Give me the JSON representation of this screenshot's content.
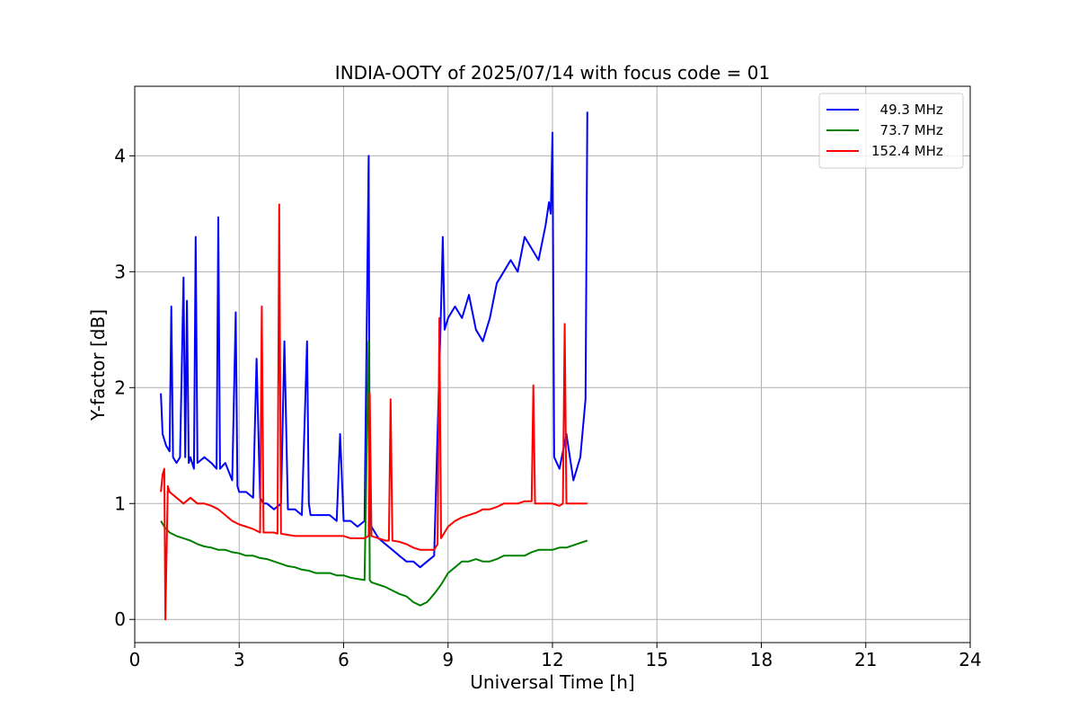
{
  "chart_data": {
    "type": "line",
    "title": "INDIA-OOTY of 2025/07/14 with focus code = 01",
    "xlabel": "Universal Time [h]",
    "ylabel": "Y-factor [dB]",
    "xlim": [
      0,
      24
    ],
    "ylim": [
      -0.2,
      4.6
    ],
    "xticks": [
      0,
      3,
      6,
      9,
      12,
      15,
      18,
      21,
      24
    ],
    "yticks": [
      0,
      1,
      2,
      3,
      4
    ],
    "grid": true,
    "legend_position": "top-right",
    "series": [
      {
        "name": "  49.3 MHz",
        "color": "#0000ff",
        "x": [
          0.75,
          0.8,
          0.9,
          1.0,
          1.05,
          1.1,
          1.2,
          1.3,
          1.4,
          1.45,
          1.5,
          1.55,
          1.6,
          1.7,
          1.75,
          1.8,
          2.0,
          2.2,
          2.35,
          2.4,
          2.45,
          2.6,
          2.8,
          2.9,
          2.95,
          3.0,
          3.2,
          3.4,
          3.5,
          3.6,
          3.7,
          3.8,
          4.0,
          4.2,
          4.3,
          4.4,
          4.6,
          4.8,
          4.95,
          5.0,
          5.05,
          5.2,
          5.4,
          5.6,
          5.8,
          5.9,
          6.0,
          6.2,
          6.4,
          6.6,
          6.72,
          6.75,
          6.8,
          7.0,
          7.2,
          7.4,
          7.6,
          7.8,
          8.0,
          8.2,
          8.4,
          8.6,
          8.8,
          8.85,
          8.9,
          9.0,
          9.2,
          9.4,
          9.6,
          9.8,
          10.0,
          10.2,
          10.4,
          10.6,
          10.8,
          11.0,
          11.2,
          11.4,
          11.6,
          11.8,
          11.9,
          11.95,
          12.0,
          12.05,
          12.2,
          12.4,
          12.6,
          12.8,
          12.95,
          13.0
        ],
        "y": [
          1.95,
          1.6,
          1.5,
          1.45,
          2.7,
          1.4,
          1.35,
          1.4,
          2.95,
          1.4,
          2.75,
          1.35,
          1.4,
          1.3,
          3.3,
          1.35,
          1.4,
          1.35,
          1.3,
          3.47,
          1.3,
          1.35,
          1.2,
          2.65,
          1.15,
          1.1,
          1.1,
          1.05,
          2.25,
          1.05,
          1.0,
          1.0,
          0.95,
          1.0,
          2.4,
          0.95,
          0.95,
          0.9,
          2.4,
          1.0,
          0.9,
          0.9,
          0.9,
          0.9,
          0.85,
          1.6,
          0.85,
          0.85,
          0.8,
          0.85,
          4.0,
          0.9,
          0.8,
          0.7,
          0.65,
          0.6,
          0.55,
          0.5,
          0.5,
          0.45,
          0.5,
          0.55,
          2.7,
          3.3,
          2.5,
          2.6,
          2.7,
          2.6,
          2.8,
          2.5,
          2.4,
          2.6,
          2.9,
          3.0,
          3.1,
          3.0,
          3.3,
          3.2,
          3.1,
          3.4,
          3.6,
          3.5,
          4.2,
          1.4,
          1.3,
          1.6,
          1.2,
          1.4,
          1.9,
          4.38
        ]
      },
      {
        "name": "  73.7 MHz",
        "color": "#008000",
        "x": [
          0.75,
          0.85,
          1.0,
          1.2,
          1.4,
          1.6,
          1.8,
          2.0,
          2.2,
          2.4,
          2.6,
          2.8,
          3.0,
          3.2,
          3.4,
          3.6,
          3.8,
          4.0,
          4.2,
          4.4,
          4.6,
          4.8,
          5.0,
          5.2,
          5.4,
          5.6,
          5.8,
          6.0,
          6.2,
          6.4,
          6.6,
          6.72,
          6.75,
          6.8,
          7.0,
          7.2,
          7.4,
          7.6,
          7.8,
          8.0,
          8.2,
          8.4,
          8.6,
          8.8,
          9.0,
          9.2,
          9.4,
          9.6,
          9.8,
          10.0,
          10.2,
          10.4,
          10.6,
          10.8,
          11.0,
          11.2,
          11.4,
          11.6,
          11.8,
          12.0,
          12.2,
          12.4,
          12.6,
          12.8,
          13.0
        ],
        "y": [
          0.85,
          0.8,
          0.75,
          0.72,
          0.7,
          0.68,
          0.65,
          0.63,
          0.62,
          0.6,
          0.6,
          0.58,
          0.57,
          0.55,
          0.55,
          0.53,
          0.52,
          0.5,
          0.48,
          0.46,
          0.45,
          0.43,
          0.42,
          0.4,
          0.4,
          0.4,
          0.38,
          0.38,
          0.36,
          0.35,
          0.34,
          2.4,
          0.34,
          0.32,
          0.3,
          0.28,
          0.25,
          0.22,
          0.2,
          0.15,
          0.12,
          0.15,
          0.22,
          0.3,
          0.4,
          0.45,
          0.5,
          0.5,
          0.52,
          0.5,
          0.5,
          0.52,
          0.55,
          0.55,
          0.55,
          0.55,
          0.58,
          0.6,
          0.6,
          0.6,
          0.62,
          0.62,
          0.64,
          0.66,
          0.68
        ]
      },
      {
        "name": "152.4 MHz",
        "color": "#ff0000",
        "x": [
          0.75,
          0.8,
          0.85,
          0.88,
          0.95,
          1.0,
          1.2,
          1.4,
          1.6,
          1.8,
          2.0,
          2.2,
          2.4,
          2.6,
          2.8,
          3.0,
          3.2,
          3.4,
          3.6,
          3.65,
          3.7,
          3.8,
          4.0,
          4.1,
          4.15,
          4.2,
          4.4,
          4.6,
          4.8,
          5.0,
          5.2,
          5.4,
          5.6,
          5.8,
          6.0,
          6.2,
          6.4,
          6.6,
          6.72,
          6.75,
          6.8,
          7.0,
          7.2,
          7.3,
          7.35,
          7.4,
          7.6,
          7.8,
          8.0,
          8.2,
          8.4,
          8.6,
          8.7,
          8.75,
          8.8,
          9.0,
          9.2,
          9.4,
          9.6,
          9.8,
          10.0,
          10.2,
          10.4,
          10.6,
          10.8,
          11.0,
          11.2,
          11.4,
          11.45,
          11.5,
          11.6,
          11.8,
          12.0,
          12.2,
          12.3,
          12.35,
          12.4,
          12.6,
          12.8,
          13.0
        ],
        "y": [
          1.1,
          1.25,
          1.3,
          0.0,
          1.15,
          1.1,
          1.05,
          1.0,
          1.05,
          1.0,
          1.0,
          0.98,
          0.95,
          0.9,
          0.85,
          0.82,
          0.8,
          0.78,
          0.75,
          2.7,
          0.75,
          0.75,
          0.75,
          0.74,
          3.58,
          0.74,
          0.73,
          0.72,
          0.72,
          0.72,
          0.72,
          0.72,
          0.72,
          0.72,
          0.72,
          0.7,
          0.7,
          0.7,
          0.72,
          1.95,
          0.72,
          0.7,
          0.68,
          0.68,
          1.9,
          0.68,
          0.67,
          0.65,
          0.62,
          0.6,
          0.6,
          0.6,
          0.65,
          2.6,
          0.7,
          0.8,
          0.85,
          0.88,
          0.9,
          0.92,
          0.95,
          0.95,
          0.97,
          1.0,
          1.0,
          1.0,
          1.02,
          1.02,
          2.02,
          1.0,
          1.0,
          1.0,
          1.0,
          0.98,
          1.0,
          2.55,
          1.0,
          1.0,
          1.0,
          1.0
        ]
      }
    ]
  }
}
